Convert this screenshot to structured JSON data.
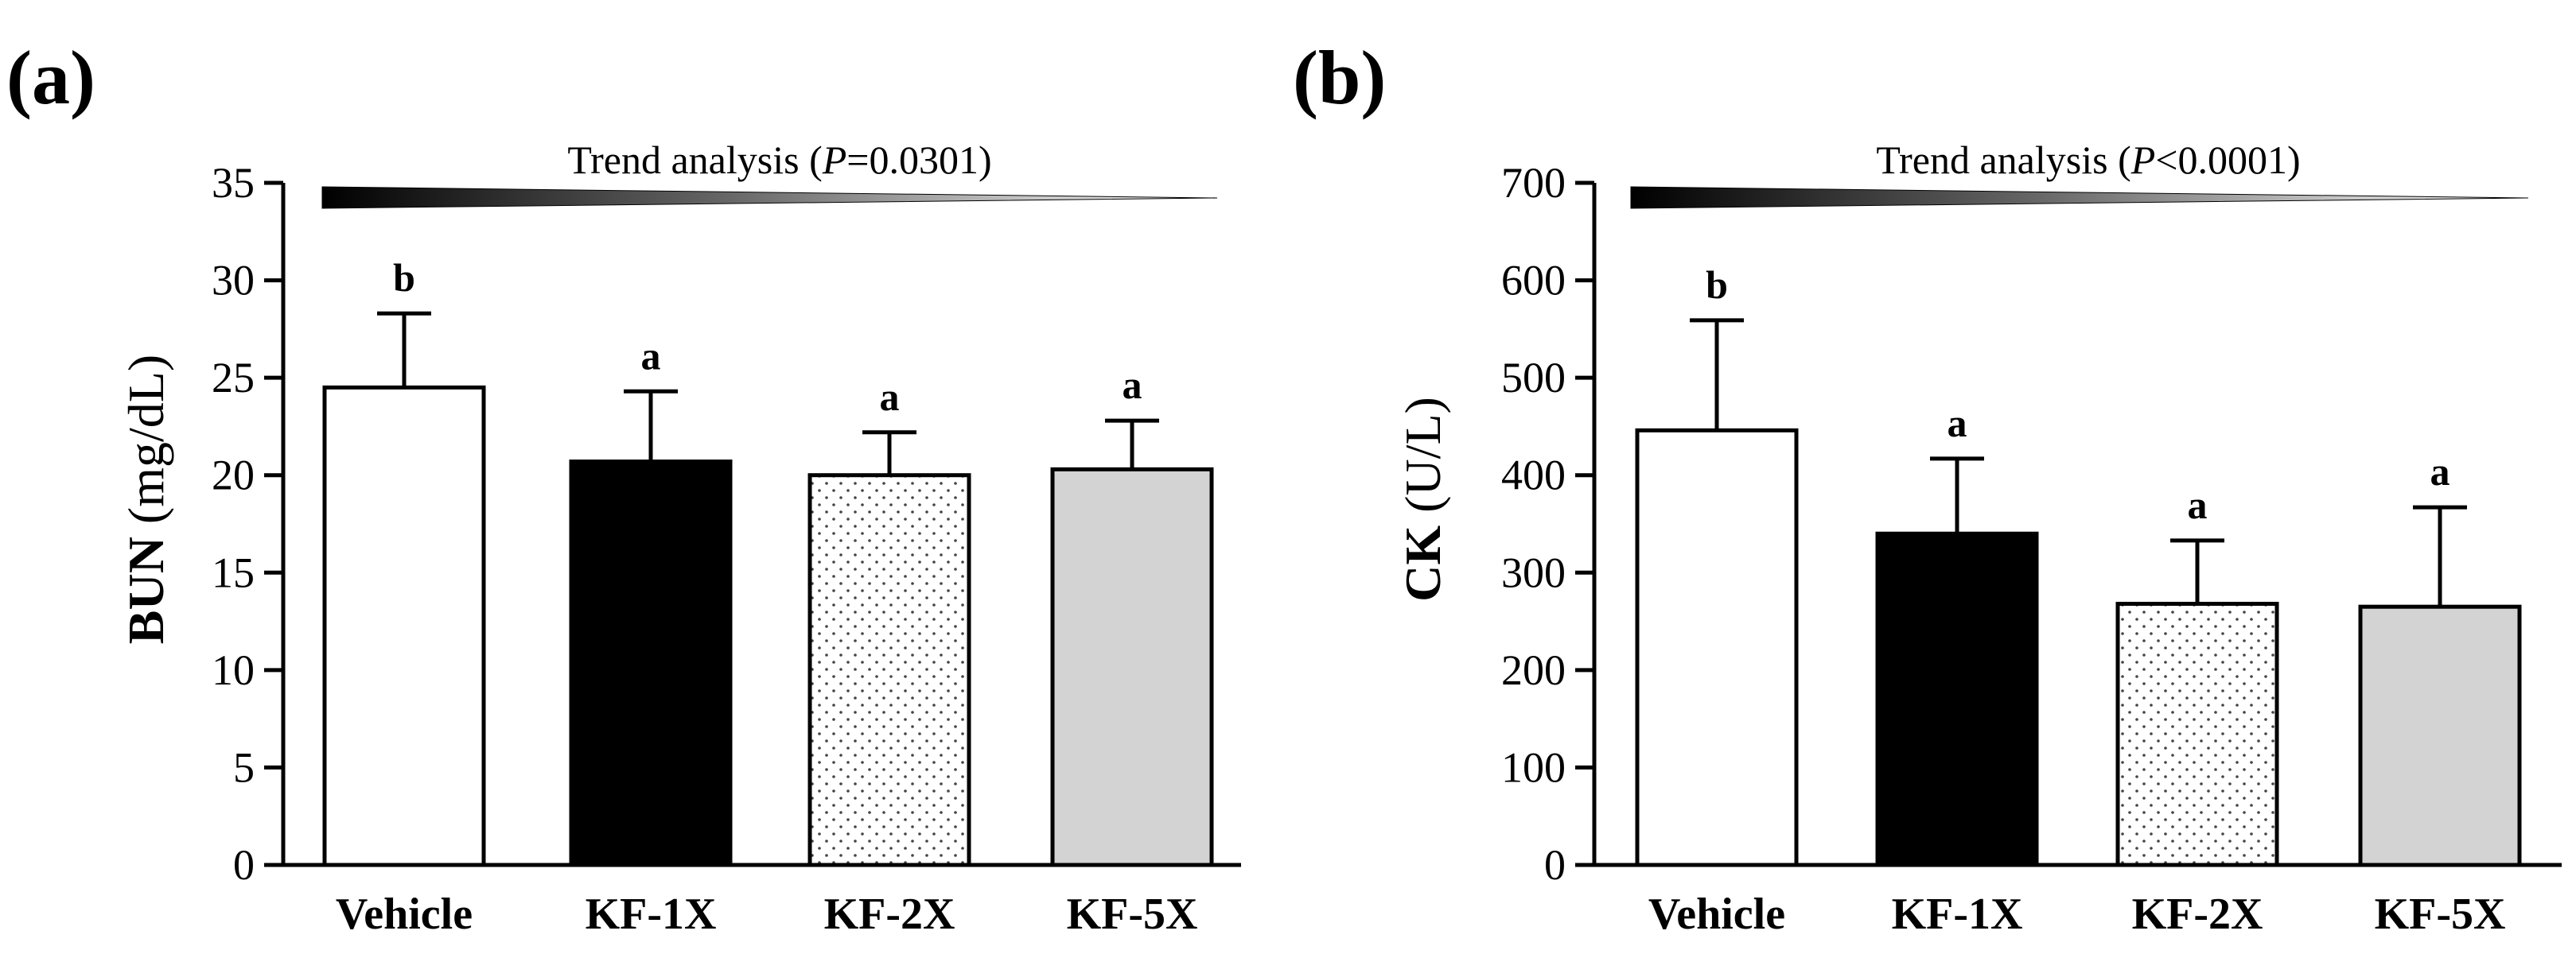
{
  "chart_data": [
    {
      "type": "bar",
      "panel_label": "(a)",
      "ylabel_main": "BUN",
      "ylabel_unit": " (mg/dL)",
      "ylim": [
        0,
        35
      ],
      "yticks": [
        0,
        5,
        10,
        15,
        20,
        25,
        30,
        35
      ],
      "categories": [
        "Vehicle",
        "KF-1X",
        "KF-2X",
        "KF-5X"
      ],
      "values": [
        24.5,
        20.7,
        20.0,
        20.3
      ],
      "errors": [
        3.8,
        3.6,
        2.2,
        2.5
      ],
      "significance": [
        "b",
        "a",
        "a",
        "a"
      ],
      "trend_prefix": "Trend analysis (",
      "trend_p": "P",
      "trend_value": "=0.0301)",
      "fills": [
        "white",
        "black",
        "dots",
        "gray"
      ]
    },
    {
      "type": "bar",
      "panel_label": "(b)",
      "ylabel_main": "CK",
      "ylabel_unit": " (U/L)",
      "ylim": [
        0,
        700
      ],
      "yticks": [
        0,
        100,
        200,
        300,
        400,
        500,
        600,
        700
      ],
      "categories": [
        "Vehicle",
        "KF-1X",
        "KF-2X",
        "KF-5X"
      ],
      "values": [
        446,
        340,
        268,
        265
      ],
      "errors": [
        113,
        77,
        65,
        102
      ],
      "significance": [
        "b",
        "a",
        "a",
        "a"
      ],
      "trend_prefix": "Trend analysis (",
      "trend_p": "P",
      "trend_value": "<0.0001)",
      "fills": [
        "white",
        "black",
        "dots",
        "gray"
      ]
    }
  ],
  "colors": {
    "bar_white": "#ffffff",
    "bar_black": "#000000",
    "bar_gray": "#d3d3d3",
    "dots_bg": "#ffffff",
    "dots_fg": "#444444",
    "axis": "#000000"
  }
}
